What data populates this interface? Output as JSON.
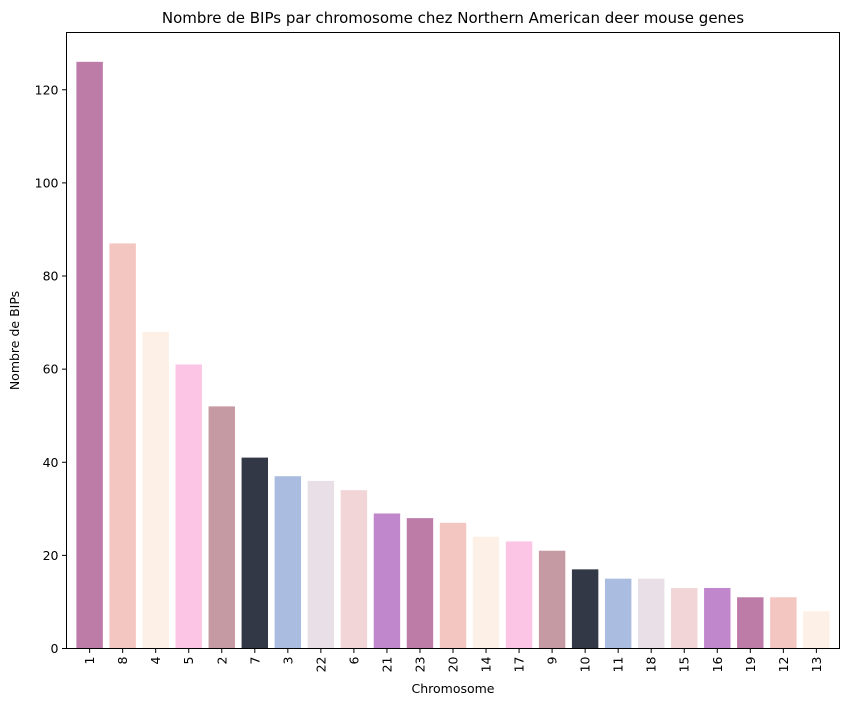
{
  "chart_data": {
    "type": "bar",
    "title": "Nombre de BIPs par chromosome chez Northern American deer mouse genes",
    "xlabel": "Chromosome",
    "ylabel": "Nombre de BIPs",
    "categories": [
      "1",
      "8",
      "4",
      "5",
      "2",
      "7",
      "3",
      "22",
      "6",
      "21",
      "23",
      "20",
      "14",
      "17",
      "9",
      "10",
      "11",
      "18",
      "15",
      "16",
      "19",
      "12",
      "13"
    ],
    "values": [
      126,
      87,
      68,
      61,
      52,
      41,
      37,
      36,
      34,
      29,
      28,
      27,
      24,
      23,
      21,
      17,
      15,
      15,
      13,
      13,
      11,
      11,
      8
    ],
    "colors": [
      "#bd7ba8",
      "#f4c6c1",
      "#fdf0e6",
      "#fcc5e5",
      "#c69aa3",
      "#333847",
      "#aabcdf",
      "#e8e0e6",
      "#f1d5d7",
      "#c087cc",
      "#bd7ba8",
      "#f4c6c1",
      "#fdf0e6",
      "#fcc5e5",
      "#c69aa3",
      "#333847",
      "#aabcdf",
      "#e8e0e6",
      "#f1d5d7",
      "#c087cc",
      "#bd7ba8",
      "#f4c6c1",
      "#fdf0e6"
    ],
    "yticks": [
      0,
      20,
      40,
      60,
      80,
      100,
      120
    ],
    "ylim": [
      0,
      132.3
    ],
    "grid": false,
    "legend": "none"
  }
}
